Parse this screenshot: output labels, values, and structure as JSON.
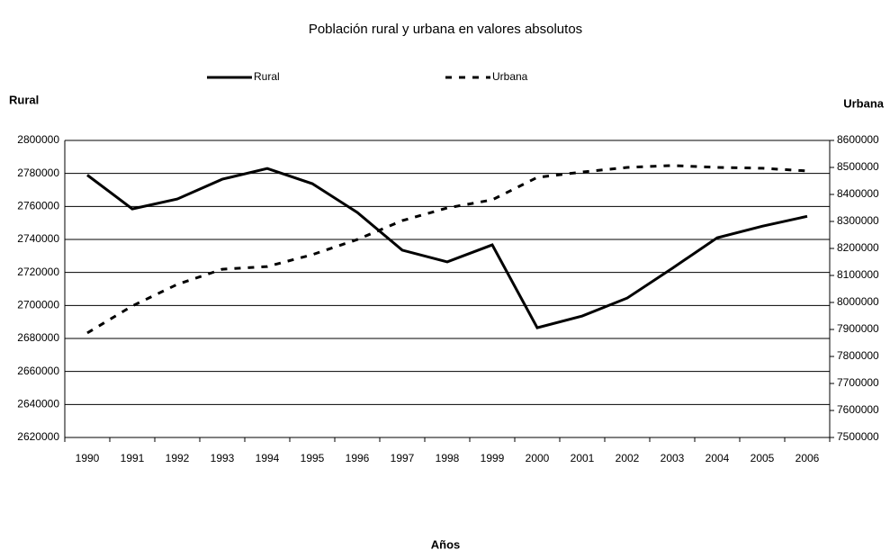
{
  "chart_data": {
    "type": "line",
    "title": "Población rural y urbana en valores absolutos",
    "ylabel": "Rural",
    "y2label": "Urbana",
    "xlabel": "Años",
    "categories": [
      "1990",
      "1991",
      "1992",
      "1993",
      "1994",
      "1995",
      "1996",
      "1997",
      "1998",
      "1999",
      "2000",
      "2001",
      "2002",
      "2003",
      "2004",
      "2005",
      "2006"
    ],
    "series": [
      {
        "name": "Rural",
        "color": "#000000",
        "dash": "solid",
        "values": [
          2779000,
          2758500,
          2764500,
          2776500,
          2783000,
          2773800,
          2756400,
          2733500,
          2726400,
          2736700,
          2686500,
          2693600,
          2704500,
          2722500,
          2741000,
          2748000,
          2754000
        ]
      },
      {
        "name": "Urbana",
        "color": "#000000",
        "dash": "dashed",
        "axis": "y2",
        "values": [
          7887000,
          7987000,
          8067000,
          8123000,
          8133000,
          8177000,
          8233000,
          8303000,
          8350000,
          8380000,
          8463000,
          8483000,
          8500000,
          8507000,
          8500000,
          8497000,
          8487000
        ]
      }
    ],
    "ylim": [
      2620000,
      2800000
    ],
    "yticks": [
      2620000,
      2640000,
      2660000,
      2680000,
      2700000,
      2720000,
      2740000,
      2760000,
      2780000,
      2800000
    ],
    "y2lim": [
      7500000,
      8600000
    ],
    "y2ticks": [
      7500000,
      7600000,
      7700000,
      7800000,
      7900000,
      8000000,
      8100000,
      8200000,
      8300000,
      8400000,
      8500000,
      8600000
    ],
    "grid": true,
    "legend": "top"
  }
}
